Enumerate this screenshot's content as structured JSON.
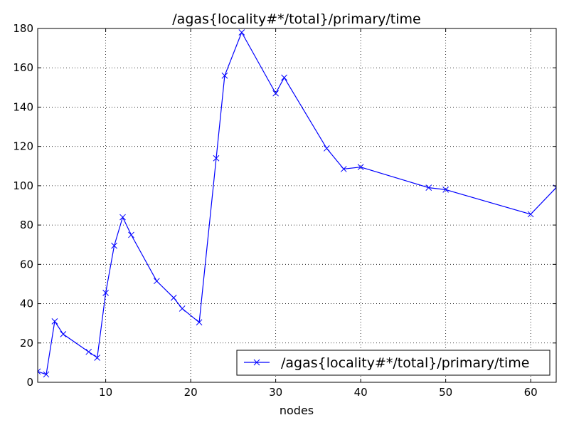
{
  "chart_data": {
    "type": "line",
    "title": "/agas{locality#*/total}/primary/time",
    "xlabel": "nodes",
    "ylabel": "",
    "xlim": [
      2,
      63
    ],
    "ylim": [
      0,
      180
    ],
    "xticks": [
      10,
      20,
      30,
      40,
      50,
      60
    ],
    "yticks": [
      0,
      20,
      40,
      60,
      80,
      100,
      120,
      140,
      160,
      180
    ],
    "grid": true,
    "legend_position": "lower-right",
    "series": [
      {
        "name": "/agas{locality#*/total}/primary/time",
        "color": "#0000ff",
        "marker": "x",
        "x": [
          2,
          3,
          4,
          5,
          8,
          9,
          10,
          11,
          12,
          13,
          16,
          18,
          19,
          21,
          23,
          24,
          26,
          30,
          31,
          36,
          38,
          40,
          48,
          50,
          60,
          63
        ],
        "y": [
          5.5,
          4,
          31,
          24.5,
          15.5,
          12.5,
          45.5,
          69.5,
          84,
          75,
          51.5,
          43,
          37.5,
          30.5,
          114,
          156,
          178,
          147,
          155,
          119,
          108.5,
          109.5,
          99,
          98,
          85.5,
          99
        ]
      }
    ]
  }
}
